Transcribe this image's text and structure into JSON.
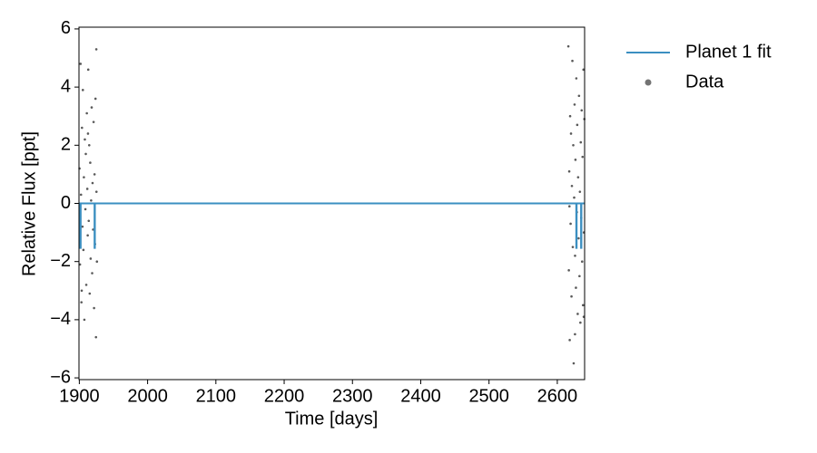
{
  "chart_data": {
    "type": "scatter",
    "xlabel": "Time [days]",
    "ylabel": "Relative Flux [ppt]",
    "xlim": [
      1899.5,
      2640
    ],
    "ylim": [
      -6.06,
      6.06
    ],
    "xticks": [
      1900,
      2000,
      2100,
      2200,
      2300,
      2400,
      2500,
      2600
    ],
    "yticks": [
      {
        "value": -6,
        "label": "−6"
      },
      {
        "value": -4,
        "label": "−4"
      },
      {
        "value": -2,
        "label": "−2"
      },
      0,
      2,
      4,
      6
    ],
    "legend": "outside upper right",
    "series": [
      {
        "name": "Planet 1 fit",
        "type": "line",
        "color": "#3b8fc1",
        "x": [
          1899.5,
          1901.5,
          1901.5,
          1902.0,
          1902.0,
          1922.3,
          1922.3,
          1922.8,
          1922.8,
          2627.8,
          2627.8,
          2628.3,
          2628.3,
          2634.8,
          2634.8,
          2635.3,
          2635.3,
          2640
        ],
        "values": [
          0,
          0,
          -1.53,
          -1.53,
          0,
          0,
          -1.53,
          -1.53,
          0,
          0,
          -1.53,
          -1.53,
          0,
          0,
          -1.53,
          -1.53,
          0,
          0
        ]
      },
      {
        "name": "Data",
        "type": "scatter",
        "color": "#000000",
        "x": [
          1900.3,
          1901.0,
          1901.8,
          1902.5,
          1903.1,
          1903.9,
          1904.6,
          1905.2,
          1906.0,
          1906.7,
          1907.4,
          1908.1,
          1908.9,
          1909.5,
          1910.2,
          1911.0,
          1911.7,
          1912.3,
          1913.1,
          1913.8,
          1914.5,
          1915.2,
          1916.0,
          1916.6,
          1917.3,
          1918.1,
          1918.8,
          1919.4,
          1920.2,
          1920.9,
          1921.6,
          1922.3,
          1923.0,
          1923.7,
          1924.4,
          1925.1,
          1925.8,
          1903.5,
          1912.7,
          1924.9,
          2616.2,
          2616.9,
          2617.5,
          2618.2,
          2618.8,
          2619.5,
          2620.1,
          2620.8,
          2621.4,
          2622.1,
          2622.7,
          2623.4,
          2624.0,
          2624.7,
          2625.3,
          2626.0,
          2626.6,
          2627.3,
          2627.9,
          2628.6,
          2629.2,
          2629.9,
          2630.5,
          2631.2,
          2631.8,
          2632.5,
          2633.1,
          2633.8,
          2634.4,
          2635.1,
          2635.7,
          2636.4,
          2637.0,
          2637.7,
          2638.3,
          2639.0,
          2639.6,
          2617.8,
          2625.9,
          2638.8
        ],
        "values": [
          1.2,
          -2.1,
          4.8,
          0.3,
          -3.4,
          2.6,
          -0.8,
          3.9,
          -1.6,
          0.9,
          -4.0,
          2.2,
          -0.2,
          1.7,
          -2.8,
          3.1,
          0.5,
          -1.1,
          4.6,
          -0.6,
          2.0,
          -3.1,
          1.4,
          -1.9,
          0.1,
          3.3,
          -2.4,
          0.7,
          -0.9,
          2.8,
          -3.6,
          1.0,
          -1.4,
          3.6,
          -4.6,
          0.4,
          -2.0,
          -3.0,
          2.4,
          5.3,
          5.4,
          -2.3,
          1.1,
          -4.7,
          3.0,
          -0.7,
          2.4,
          -3.2,
          0.6,
          4.9,
          -1.5,
          2.0,
          -5.5,
          0.2,
          3.4,
          -1.8,
          1.5,
          -2.9,
          4.3,
          -0.3,
          2.7,
          -3.8,
          0.9,
          -1.2,
          3.7,
          -2.5,
          0.4,
          -4.1,
          2.1,
          -0.5,
          3.2,
          -2.0,
          1.6,
          -3.5,
          4.6,
          -1.0,
          2.9,
          -0.1,
          -4.5,
          -3.9
        ]
      }
    ]
  }
}
